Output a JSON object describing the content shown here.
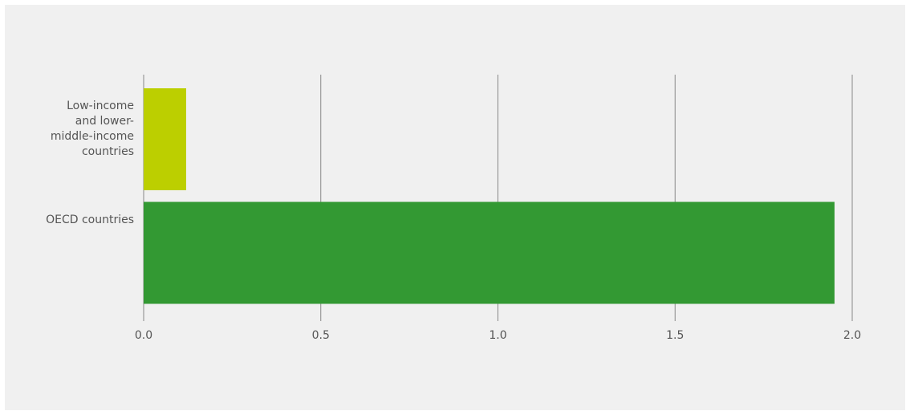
{
  "chart_data": {
    "type": "bar",
    "orientation": "horizontal",
    "categories": [
      "Low-income and lower-middle-income countries",
      "OECD countries"
    ],
    "values": [
      0.12,
      1.95
    ],
    "colors": [
      "#bccf00",
      "#339933"
    ],
    "xlim": [
      0,
      2
    ],
    "xticks": [
      {
        "value": 0,
        "label": "0.0"
      },
      0.5,
      {
        "value": 1,
        "label": "1.0"
      },
      1.5,
      {
        "value": 2,
        "label": "2.0"
      }
    ],
    "grid": true
  }
}
